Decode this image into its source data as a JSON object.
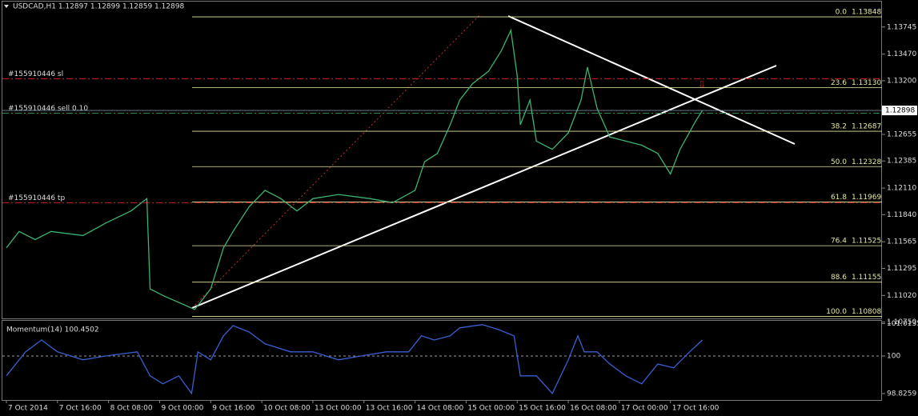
{
  "header": "USDCAD,H1  1.12897 1.12899 1.12859 1.12898",
  "chart_data": [
    {
      "type": "line",
      "name": "USDCAD,H1",
      "color": "#3cb371",
      "x": [
        0,
        4,
        9,
        14,
        24,
        31,
        39,
        44,
        45,
        49,
        59,
        64,
        68,
        71,
        76,
        81,
        86,
        91,
        96,
        104,
        114,
        121,
        128,
        131,
        135,
        139,
        142,
        146,
        151,
        155,
        158,
        160,
        161,
        164,
        166,
        171,
        176,
        180,
        182,
        185,
        189,
        194,
        199,
        204,
        208,
        211,
        216,
        218
      ],
      "values": [
        1.11503,
        1.1167,
        1.11587,
        1.1167,
        1.11628,
        1.11753,
        1.11878,
        1.12003,
        1.11087,
        1.1102,
        1.10878,
        1.11087,
        1.11503,
        1.1167,
        1.1192,
        1.12087,
        1.12003,
        1.11878,
        1.12003,
        1.12045,
        1.12003,
        1.11962,
        1.12087,
        1.12378,
        1.12462,
        1.12753,
        1.13003,
        1.1317,
        1.13295,
        1.13503,
        1.13712,
        1.13253,
        1.12753,
        1.13003,
        1.12587,
        1.12503,
        1.1267,
        1.13003,
        1.13337,
        1.1292,
        1.12628,
        1.12587,
        1.12545,
        1.12462,
        1.12253,
        1.12503,
        1.12795,
        1.12898
      ],
      "xlim": [
        -1.25,
        274.25
      ],
      "xticks": [
        {
          "value": 0,
          "label": "7 Oct 2014"
        },
        {
          "value": 16,
          "label": "7 Oct 16:00"
        },
        {
          "value": 32,
          "label": "8 Oct 08:00"
        },
        {
          "value": 48,
          "label": "9 Oct 00:00"
        },
        {
          "value": 64,
          "label": "9 Oct 16:00"
        },
        {
          "value": 80,
          "label": "10 Oct 08:00"
        },
        {
          "value": 96,
          "label": "13 Oct 00:00"
        },
        {
          "value": 112,
          "label": "13 Oct 16:00"
        },
        {
          "value": 128,
          "label": "14 Oct 08:00"
        },
        {
          "value": 144,
          "label": "15 Oct 00:00"
        },
        {
          "value": 160,
          "label": "15 Oct 16:00"
        },
        {
          "value": 176,
          "label": "16 Oct 08:00"
        },
        {
          "value": 192,
          "label": "17 Oct 00:00"
        },
        {
          "value": 208,
          "label": "17 Oct 16:00"
        }
      ],
      "ylim": [
        1.10787,
        1.14003
      ],
      "yticks": [
        1.13745,
        {
          "value": 1.1347,
          "label": "1.13470"
        },
        {
          "value": 1.132,
          "label": "1.13200"
        },
        1.12655,
        1.12385,
        {
          "value": 1.1211,
          "label": "1.12110"
        },
        {
          "value": 1.1184,
          "label": "1.11840"
        },
        1.11565,
        1.11295,
        {
          "value": 1.1102,
          "label": "1.11020"
        },
        {
          "value": 1.1075,
          "label": "1.10750"
        }
      ],
      "last_price": 1.12898,
      "fib_levels": [
        {
          "level": "0.0",
          "price": 1.13848
        },
        {
          "level": "23.6",
          "price": {
            "value": 1.1313,
            "label": "1.13130"
          }
        },
        {
          "level": "38.2",
          "price": 1.12687
        },
        {
          "level": "50.0",
          "price": 1.12328
        },
        {
          "level": "61.8",
          "price": 1.11969
        },
        {
          "level": "76.4",
          "price": 1.11525
        },
        {
          "level": "88.6",
          "price": 1.11155
        },
        {
          "level": "100.0",
          "price": 1.10808
        }
      ],
      "orders": [
        {
          "label": "#155910446 sl",
          "price": 1.1322,
          "color": "#d02020"
        },
        {
          "label": "#155910446 sell 0.10",
          "price": 1.1287,
          "color": "#2e8b57"
        },
        {
          "label": "#155910446 tp",
          "price": 1.11962,
          "color": "#d02020"
        }
      ]
    },
    {
      "type": "line",
      "title": "Momentum(14) 100.4502",
      "color": "#3a5fd0",
      "x": [
        0,
        6,
        11,
        16,
        24,
        31,
        41,
        45,
        49,
        54,
        58,
        60,
        64,
        68,
        71,
        76,
        81,
        89,
        96,
        104,
        111,
        119,
        126,
        130,
        134,
        139,
        142,
        149,
        154,
        159,
        161,
        166,
        171,
        176,
        179,
        181,
        185,
        189,
        194,
        199,
        204,
        209,
        214,
        218
      ],
      "values": [
        99.38,
        100.13,
        100.5,
        100.13,
        99.88,
        100,
        100.13,
        99.38,
        99.13,
        99.38,
        98.83,
        100.13,
        99.88,
        100.63,
        100.95,
        100.75,
        100.38,
        100.13,
        100.13,
        99.88,
        100,
        100.13,
        100.13,
        100.63,
        100.5,
        100.63,
        100.88,
        100.98,
        100.83,
        100.63,
        99.38,
        99.38,
        98.83,
        99.88,
        100.63,
        100.13,
        100.13,
        99.75,
        99.38,
        99.13,
        99.75,
        99.63,
        100.13,
        100.5
      ],
      "xlim": [
        -1.25,
        274.25
      ],
      "ylim": [
        98.625,
        101.125
      ],
      "yticks": [
        101.0135,
        100,
        98.8259
      ]
    }
  ]
}
